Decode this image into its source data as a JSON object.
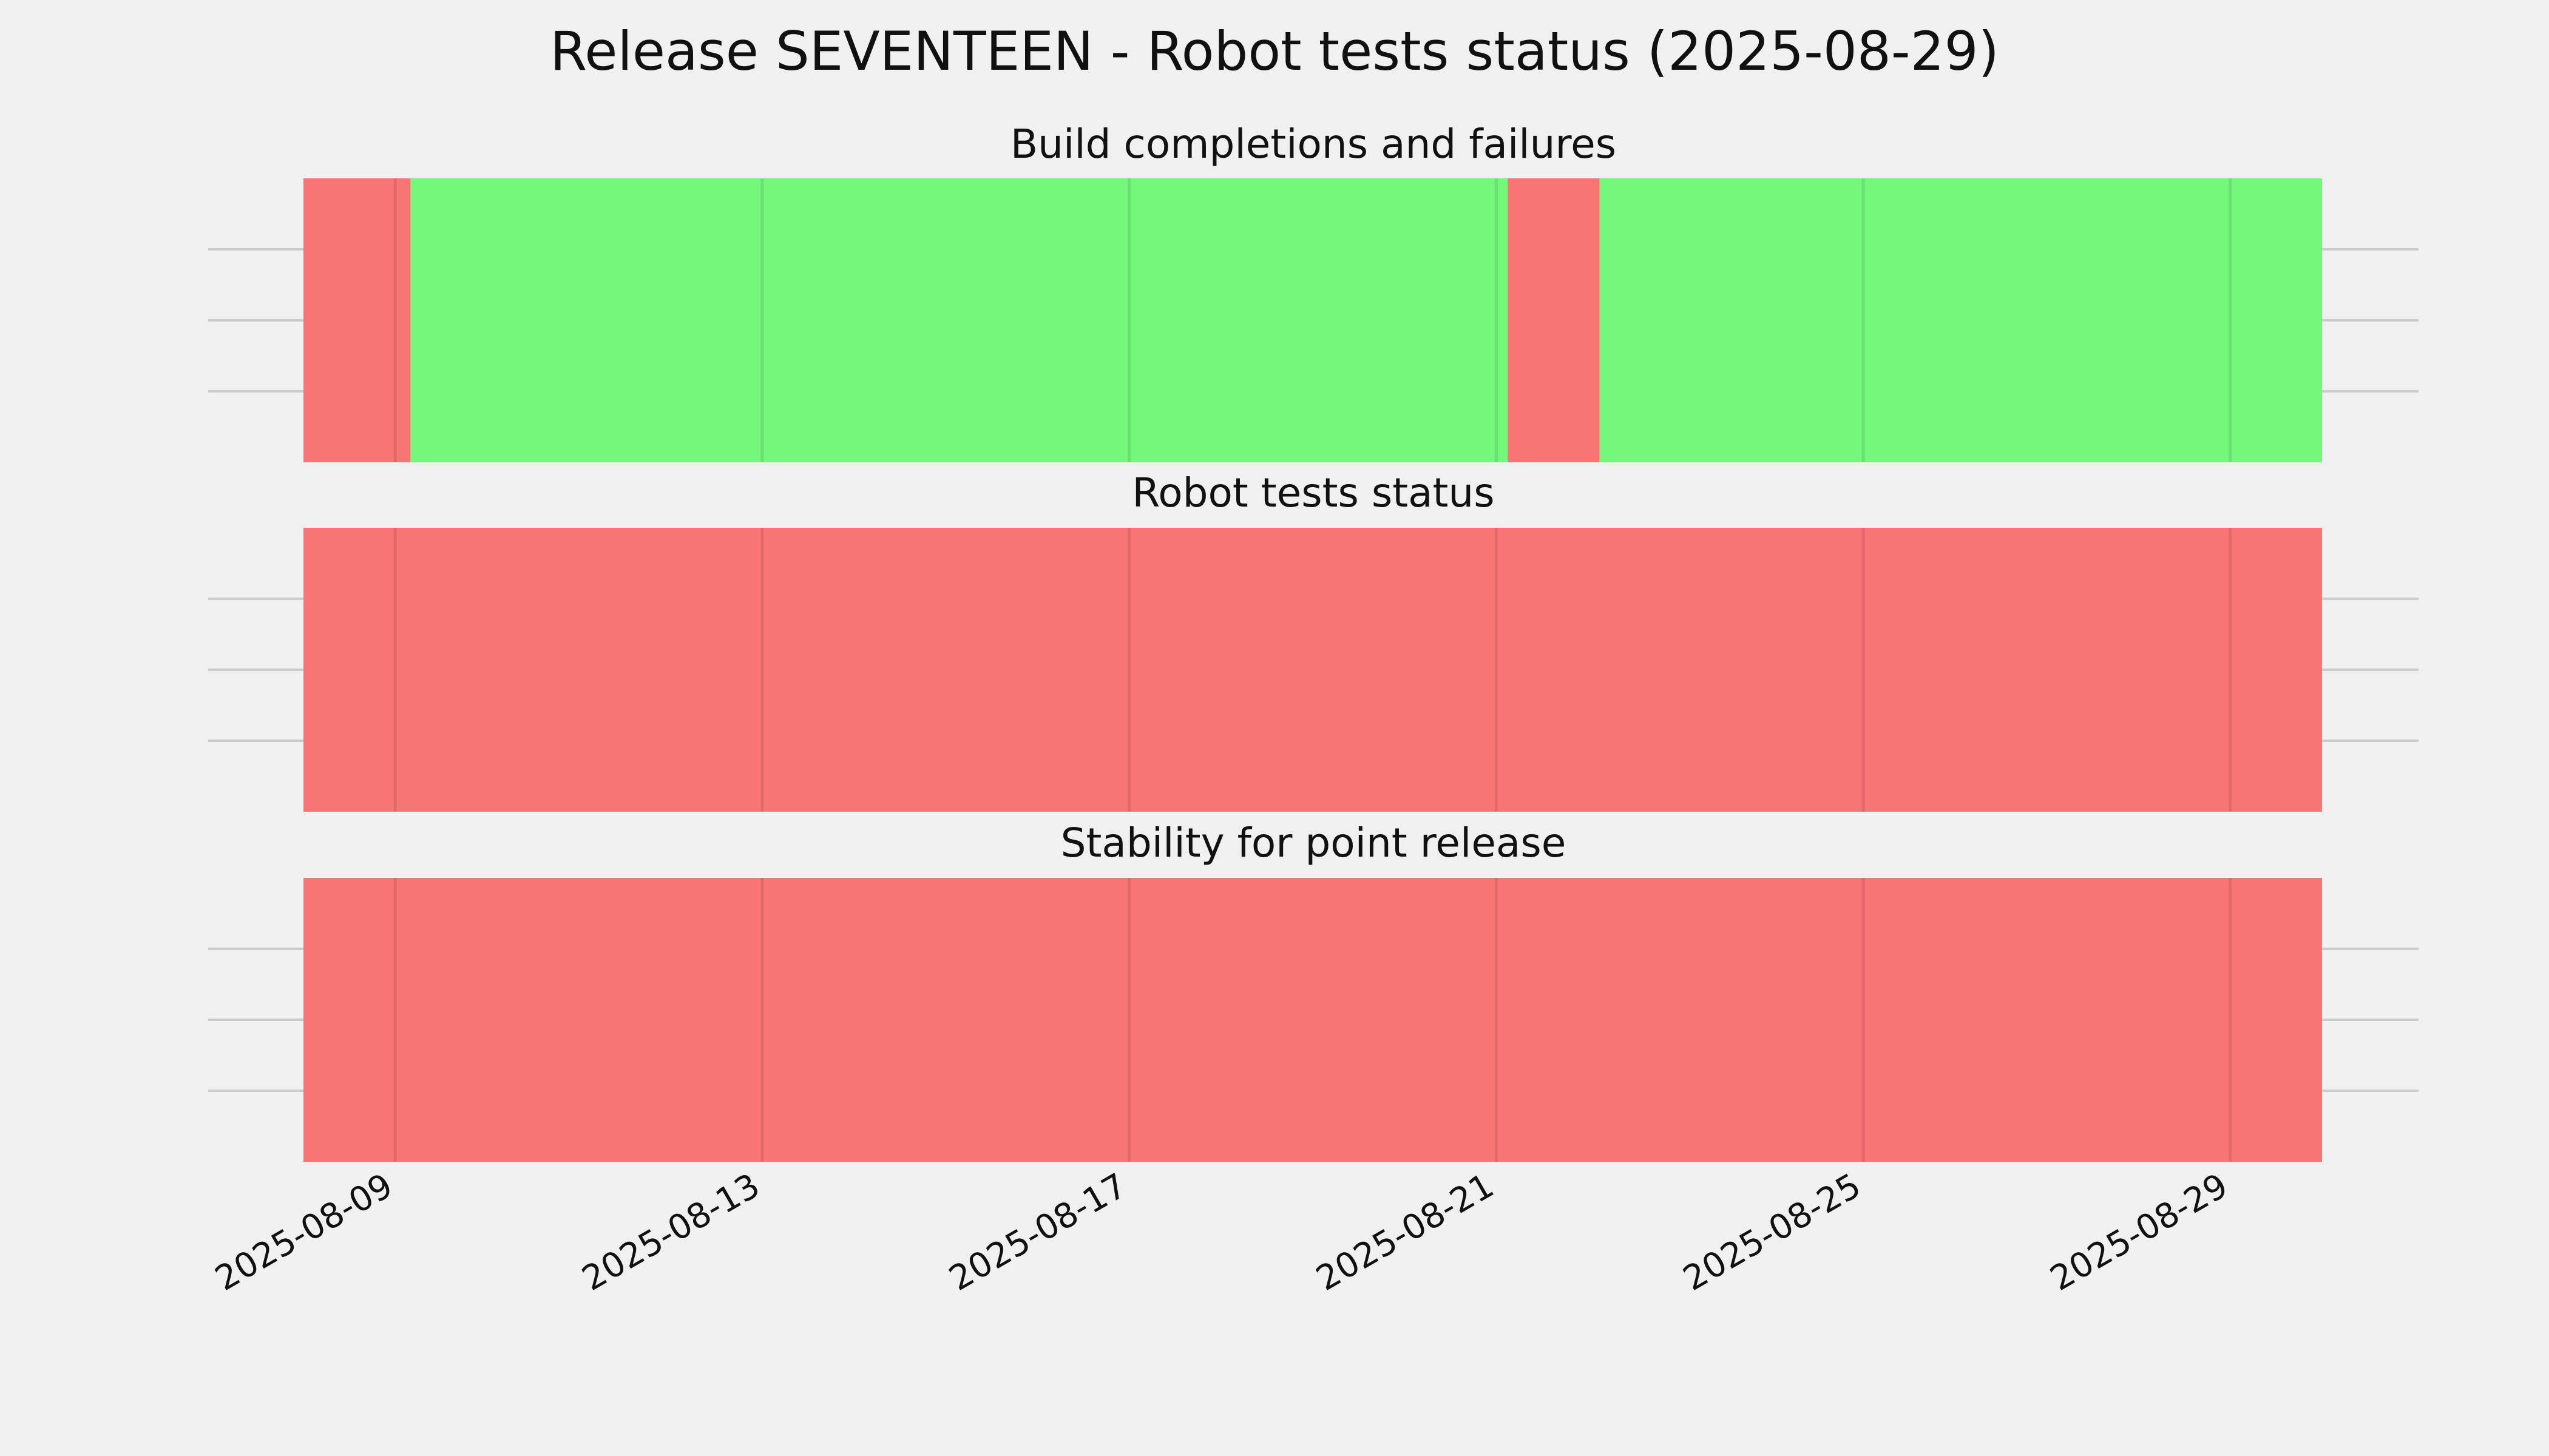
{
  "chart_data": {
    "type": "timeline",
    "title": "Release SEVENTEEN - Robot tests status (2025-08-29)",
    "x_range": [
      "2025-08-08",
      "2025-08-30"
    ],
    "x_ticks": [
      "2025-08-09",
      "2025-08-13",
      "2025-08-17",
      "2025-08-21",
      "2025-08-25",
      "2025-08-29"
    ],
    "grid": true,
    "colors": {
      "pass": "#74f77a",
      "fail": "#f77575",
      "background": "#f0f0f0"
    },
    "panels": [
      {
        "title": "Build completions and failures",
        "segments": [
          {
            "start": "2025-08-08",
            "end": "2025-08-09 04:00",
            "status": "fail"
          },
          {
            "start": "2025-08-09 04:00",
            "end": "2025-08-21 03:00",
            "status": "pass"
          },
          {
            "start": "2025-08-21 03:00",
            "end": "2025-08-22 03:00",
            "status": "fail"
          },
          {
            "start": "2025-08-22 03:00",
            "end": "2025-08-30",
            "status": "pass"
          }
        ]
      },
      {
        "title": "Robot tests status",
        "segments": [
          {
            "start": "2025-08-08",
            "end": "2025-08-30",
            "status": "fail"
          }
        ]
      },
      {
        "title": "Stability for point release",
        "segments": [
          {
            "start": "2025-08-08",
            "end": "2025-08-30",
            "status": "fail"
          }
        ]
      }
    ]
  }
}
